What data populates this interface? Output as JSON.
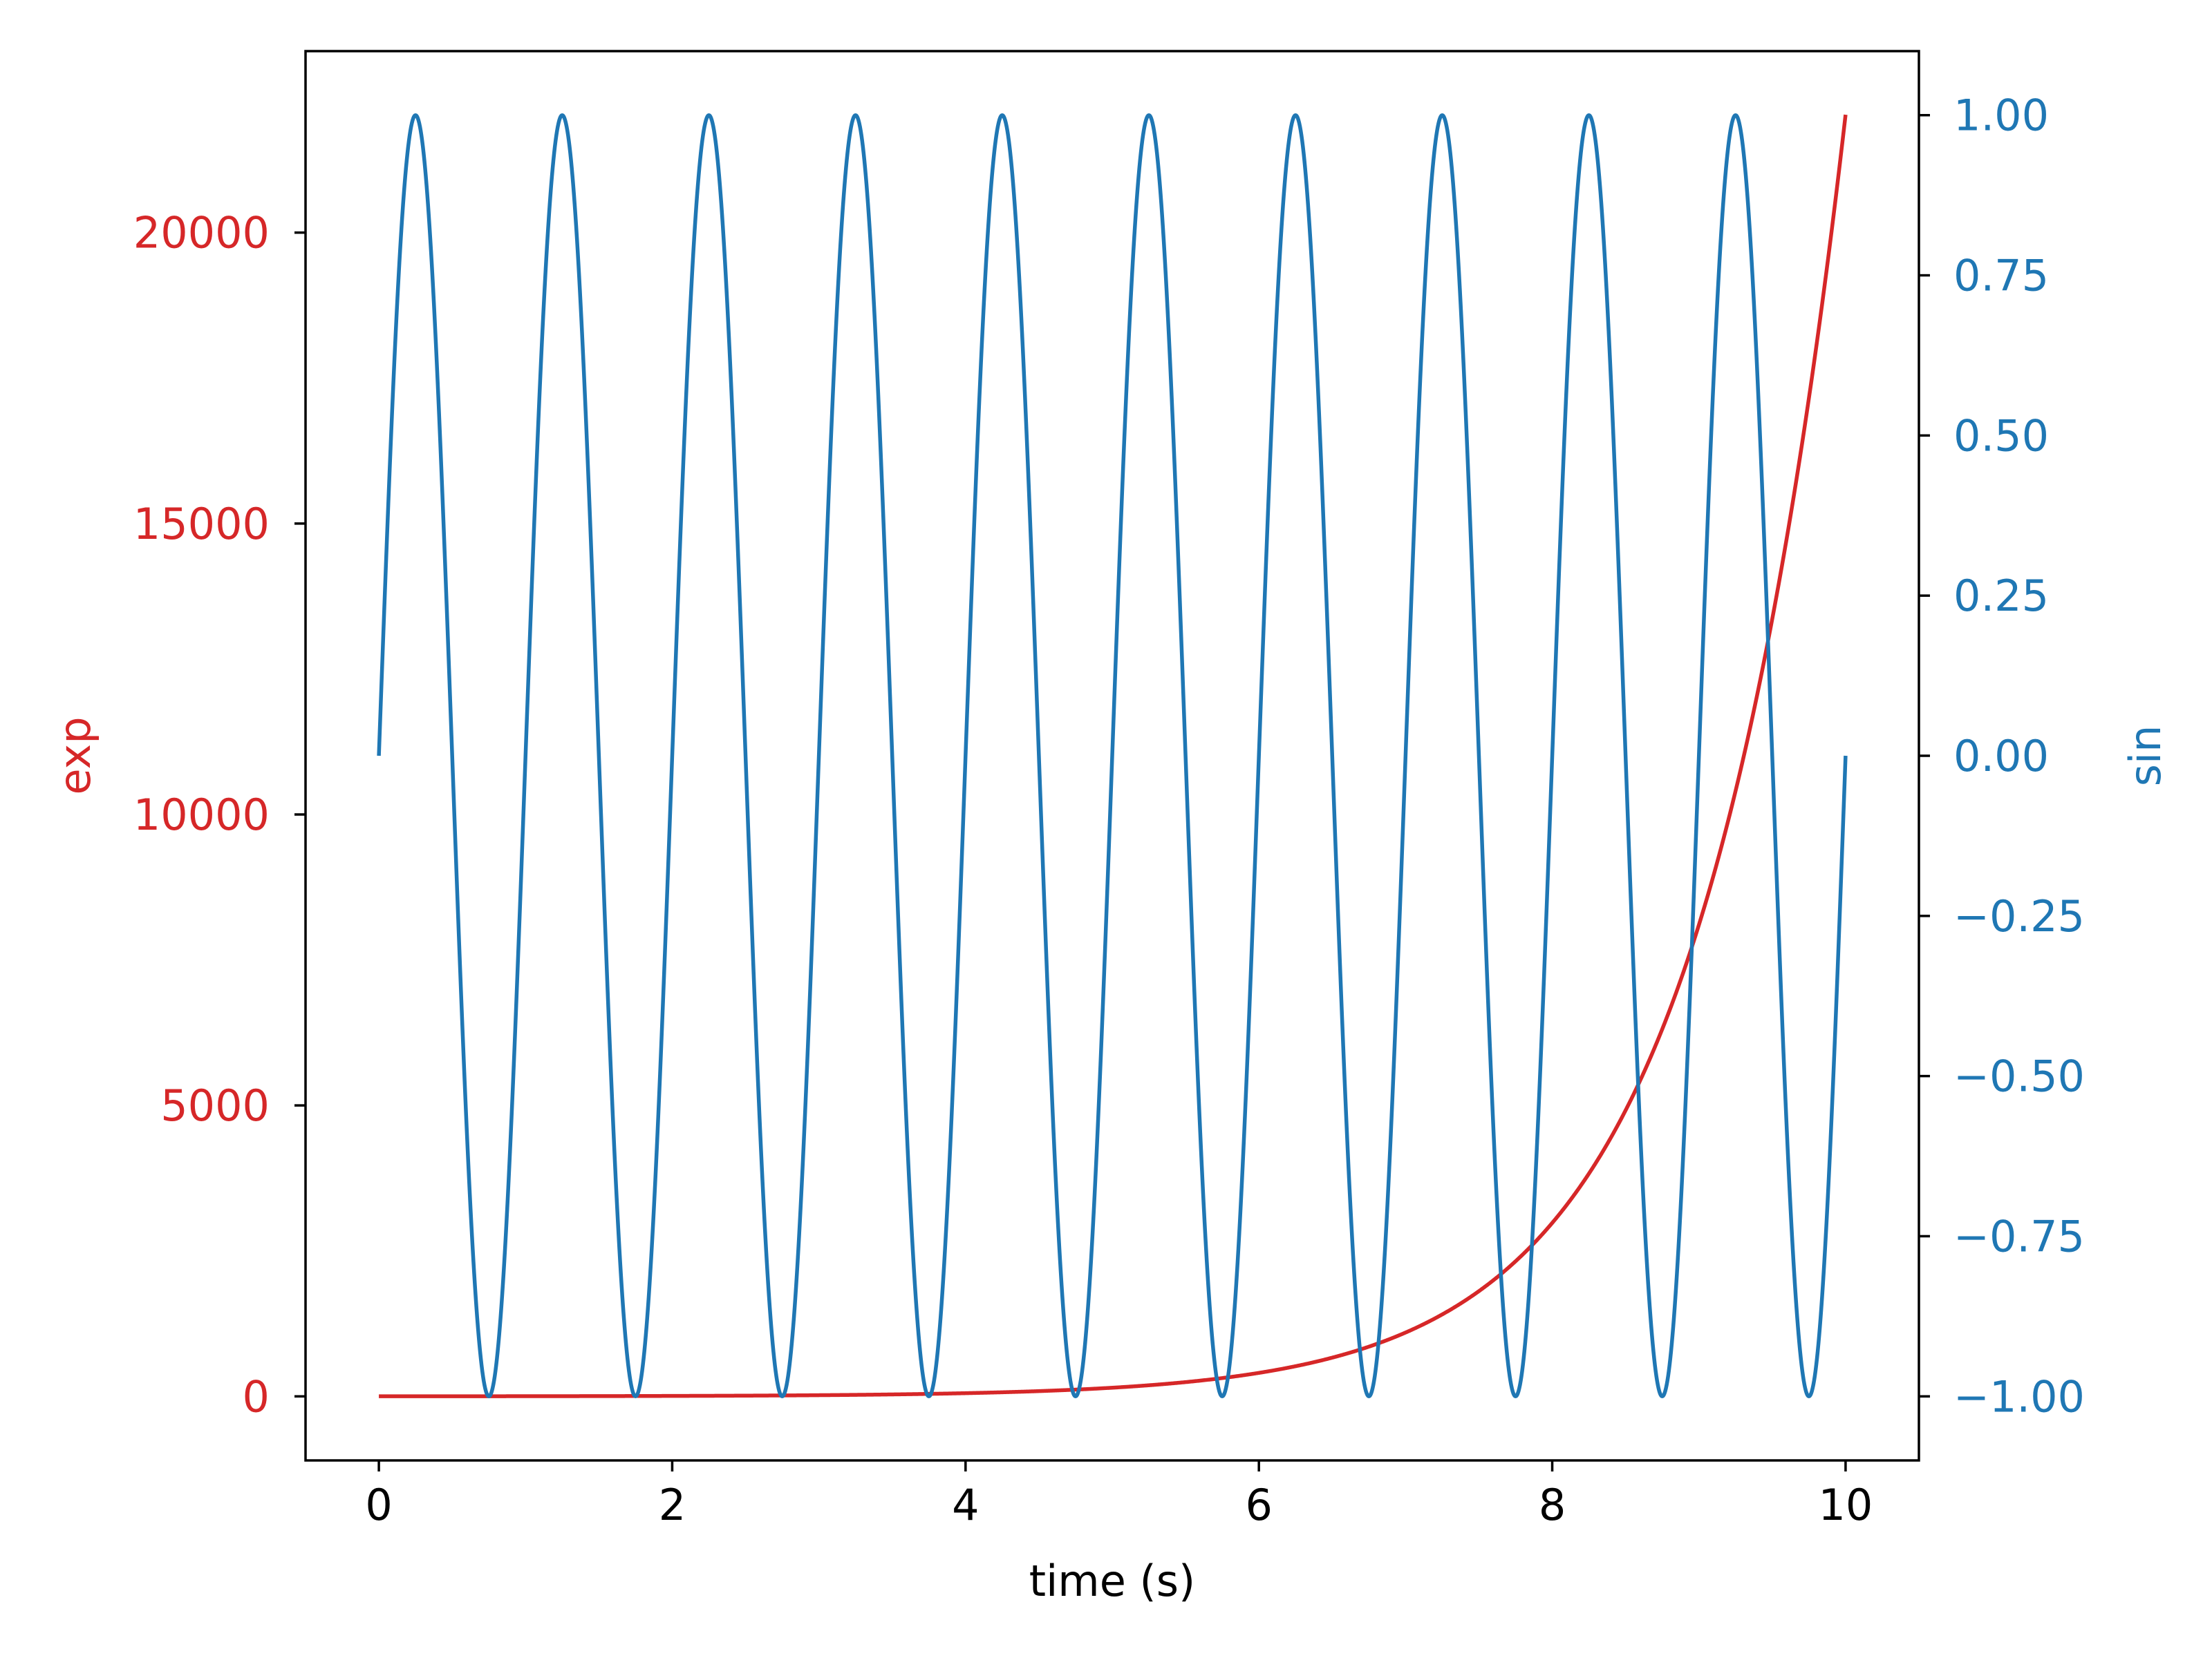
{
  "chart_data": {
    "type": "line",
    "xlabel": "time (s)",
    "ylabel_left": "exp",
    "ylabel_right": "sin",
    "xlim": [
      -0.5,
      10.5
    ],
    "ylim_left": [
      -1101,
      23119
    ],
    "ylim_right": [
      -1.1,
      1.1
    ],
    "xticks": [
      0,
      2,
      4,
      6,
      8,
      10
    ],
    "xtick_labels": [
      "0",
      "2",
      "4",
      "6",
      "8",
      "10"
    ],
    "yticks_left": [
      0,
      5000,
      10000,
      15000,
      20000
    ],
    "ytick_labels_left": [
      "0",
      "5000",
      "10000",
      "15000",
      "20000"
    ],
    "yticks_right": [
      -1.0,
      -0.75,
      -0.5,
      -0.25,
      0.0,
      0.25,
      0.5,
      0.75,
      1.0
    ],
    "ytick_labels_right": [
      "−1.00",
      "−0.75",
      "−0.50",
      "−0.25",
      "0.00",
      "0.25",
      "0.50",
      "0.75",
      "1.00"
    ],
    "grid": false,
    "legend": null,
    "series": [
      {
        "name": "exp",
        "axis": "left",
        "color": "#d62728",
        "function": "exp(t)",
        "x": [
          0,
          1,
          2,
          3,
          4,
          5,
          6,
          7,
          8,
          9,
          9.5,
          10
        ],
        "y": [
          1,
          2.72,
          7.39,
          20.1,
          54.6,
          148.4,
          403.4,
          1096.6,
          2981.0,
          8103.1,
          13359.7,
          22026.5
        ]
      },
      {
        "name": "sin",
        "axis": "right",
        "color": "#1f77b4",
        "function": "sin(2*pi*t)",
        "x": [
          0,
          0.25,
          0.5,
          0.75,
          1.0,
          1.25,
          1.5,
          1.75,
          2.0,
          9.75,
          10.0
        ],
        "y": [
          0,
          1,
          0,
          -1,
          0,
          1,
          0,
          -1,
          0,
          -1,
          0
        ]
      }
    ]
  }
}
